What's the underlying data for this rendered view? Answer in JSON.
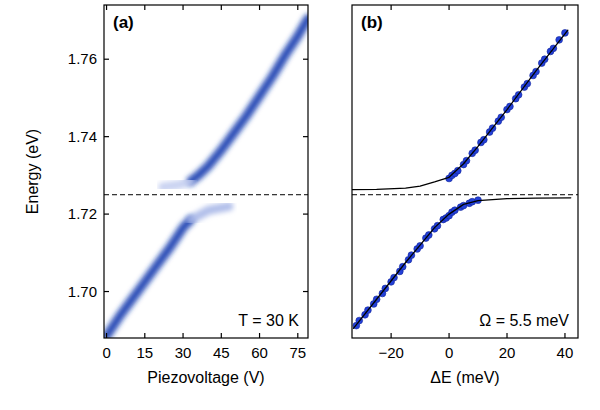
{
  "chart_data": [
    {
      "type": "line",
      "panel_label": "(a)",
      "annotation": "T = 30 K",
      "xlabel": "Piezovoltage (V)",
      "ylabel": "Energy (eV)",
      "xlim": [
        -1,
        79
      ],
      "ylim": [
        1.688,
        1.774
      ],
      "xticks": [
        0,
        15,
        30,
        45,
        60,
        75
      ],
      "yticks": [
        {
          "value": 1.7,
          "label": "1.70"
        },
        1.72,
        1.74,
        1.76
      ],
      "hline": 1.725,
      "series": [
        {
          "x": [
            0,
            5,
            10,
            15,
            20,
            25,
            30,
            33
          ],
          "values": [
            1.6885,
            1.6935,
            1.698,
            1.7025,
            1.707,
            1.7115,
            1.7165,
            1.7185
          ],
          "color": "#1b3fb0",
          "line_style": "smeared"
        },
        {
          "x": [
            33,
            36,
            40,
            45,
            50,
            55,
            60,
            65,
            70,
            75,
            79
          ],
          "values": [
            1.7285,
            1.73,
            1.7325,
            1.7365,
            1.741,
            1.7455,
            1.7505,
            1.7555,
            1.761,
            1.766,
            1.7705
          ],
          "color": "#1b3fb0",
          "line_style": "smeared"
        },
        {
          "x": [
            33,
            40,
            48
          ],
          "values": [
            1.7185,
            1.721,
            1.722
          ],
          "color": "#a9b8e8",
          "line_style": "smeared"
        },
        {
          "x": [
            22,
            28,
            33
          ],
          "values": [
            1.727,
            1.7275,
            1.7285
          ],
          "color": "#c3cdef",
          "line_style": "smeared"
        }
      ]
    },
    {
      "type": "scatter",
      "panel_label": "(b)",
      "annotation": "Ω = 5.5 meV",
      "xlabel": "ΔE (meV)",
      "xlim": [
        -33.5,
        44.5
      ],
      "ylim": [
        1.688,
        1.774
      ],
      "xticks": [
        {
          "value": -20,
          "label": "−20"
        },
        0,
        20,
        40
      ],
      "tick_labels": "x",
      "hline": 1.725,
      "series": [
        {
          "type": "scatter",
          "marker": "circle",
          "color": "#2340d8",
          "x": [
            -32,
            -31,
            -29,
            -28,
            -26,
            -25,
            -23,
            -22,
            -20,
            -19,
            -17,
            -16,
            -14,
            -13,
            -11,
            -10,
            -8,
            -7,
            -5,
            -4,
            -2,
            -1,
            0,
            1,
            2,
            4,
            5,
            7,
            8,
            10
          ],
          "values": [
            1.6912,
            1.6925,
            1.694,
            1.6952,
            1.6968,
            1.698,
            1.6995,
            1.7008,
            1.7025,
            1.7036,
            1.7052,
            1.7064,
            1.7082,
            1.7094,
            1.711,
            1.7118,
            1.7138,
            1.7146,
            1.7162,
            1.717,
            1.7186,
            1.719,
            1.7196,
            1.7205,
            1.721,
            1.7218,
            1.7222,
            1.7228,
            1.7232,
            1.7236
          ]
        },
        {
          "type": "scatter",
          "marker": "circle",
          "color": "#2340d8",
          "x": [
            0,
            1,
            2,
            3,
            5,
            6,
            8,
            9,
            11,
            12,
            14,
            15,
            17,
            18,
            20,
            21,
            23,
            24,
            26,
            27,
            29,
            30,
            32,
            33,
            35,
            36,
            38,
            40
          ],
          "values": [
            1.7292,
            1.73,
            1.7305,
            1.7312,
            1.7328,
            1.7338,
            1.7357,
            1.7365,
            1.7385,
            1.7392,
            1.7412,
            1.7422,
            1.744,
            1.745,
            1.747,
            1.7478,
            1.7498,
            1.7508,
            1.7528,
            1.7537,
            1.7558,
            1.7568,
            1.759,
            1.76,
            1.762,
            1.7628,
            1.765,
            1.7668
          ]
        },
        {
          "type": "line",
          "line_style": "solid",
          "color": "#000000",
          "x": [
            -35,
            -25,
            -15,
            -10,
            -5,
            0,
            5,
            10,
            20,
            30,
            41
          ],
          "values": [
            1.7263,
            1.7264,
            1.7267,
            1.7272,
            1.7283,
            1.7295,
            1.733,
            1.7375,
            1.747,
            1.757,
            1.7675
          ]
        },
        {
          "type": "line",
          "line_style": "solid",
          "color": "#000000",
          "x": [
            -33,
            -25,
            -15,
            -10,
            -5,
            0,
            5,
            10,
            20,
            30,
            42
          ],
          "values": [
            1.6905,
            1.698,
            1.7075,
            1.712,
            1.7165,
            1.72,
            1.7225,
            1.7235,
            1.724,
            1.7241,
            1.7242
          ]
        }
      ]
    }
  ]
}
